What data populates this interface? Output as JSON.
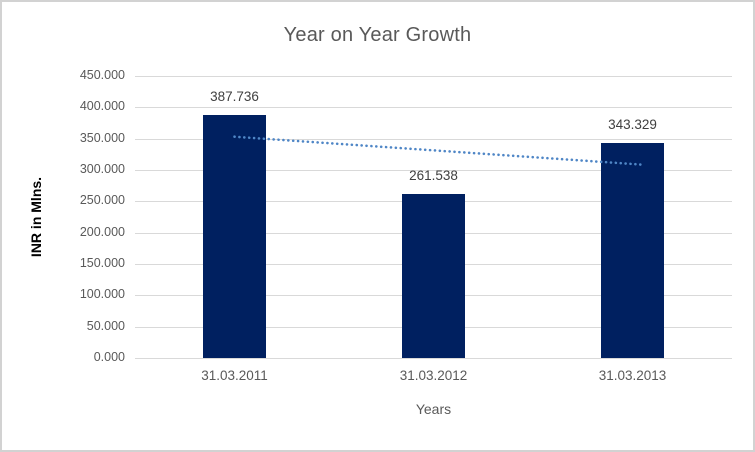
{
  "chart_data": {
    "type": "bar",
    "title": "Year on Year Growth",
    "xlabel": "Years",
    "ylabel": "INR in Mlns.",
    "categories": [
      "31.03.2011",
      "31.03.2012",
      "31.03.2013"
    ],
    "values": [
      387.736,
      261.538,
      343.329
    ],
    "data_labels": [
      "387.736",
      "261.538",
      "343.329"
    ],
    "ylim": [
      0,
      450
    ],
    "ytick_step": 50,
    "ytick_labels": [
      "0.000",
      "50.000",
      "100.000",
      "150.000",
      "200.000",
      "250.000",
      "300.000",
      "350.000",
      "400.000",
      "450.000"
    ],
    "grid": true,
    "legend": "none",
    "bar_color": "#002060",
    "trendline": {
      "type": "linear",
      "style": "dotted",
      "color": "#4F86C6",
      "endpoint_values": [
        353.1,
        308.7
      ]
    }
  },
  "colors": {
    "background": "#FFFFFF",
    "frame_border": "#D2D2D2",
    "title_text": "#595959",
    "tick_text": "#595959",
    "data_label_text": "#404040",
    "axis_title_text": "#000000",
    "gridline": "#D9D9D9"
  }
}
